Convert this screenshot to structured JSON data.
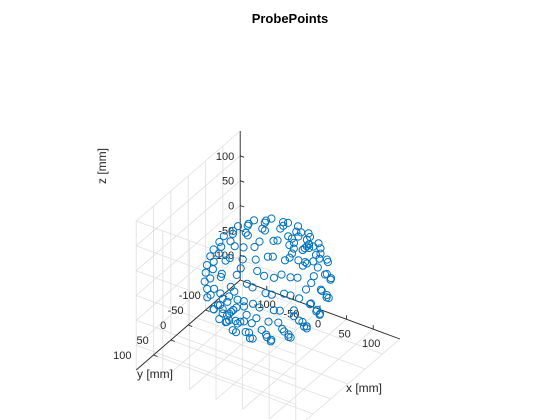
{
  "chart_data": {
    "type": "scatter",
    "title": "ProbePoints",
    "xlabel": "x [mm]",
    "ylabel": "y [mm]",
    "zlabel": "z [mm]",
    "xlim": [
      -150,
      150
    ],
    "ylim": [
      -150,
      150
    ],
    "zlim": [
      -150,
      150
    ],
    "xticks": [
      -100,
      -50,
      0,
      50,
      100
    ],
    "yticks": [
      -100,
      -50,
      0,
      50,
      100
    ],
    "zticks": [
      -100,
      -50,
      0,
      50,
      100
    ],
    "xtick_labels": [
      "-100",
      "-50",
      "0",
      "50",
      "100"
    ],
    "ytick_labels": [
      "-100",
      "-50",
      "0",
      "50",
      "100"
    ],
    "ztick_labels": [
      "-100",
      "-50",
      "0",
      "50",
      "100"
    ],
    "grid": true,
    "marker": "circle",
    "point_color": "#0072BD",
    "sphere_radius_approx": 100,
    "ring_radius_approx": 25,
    "points": []
  }
}
